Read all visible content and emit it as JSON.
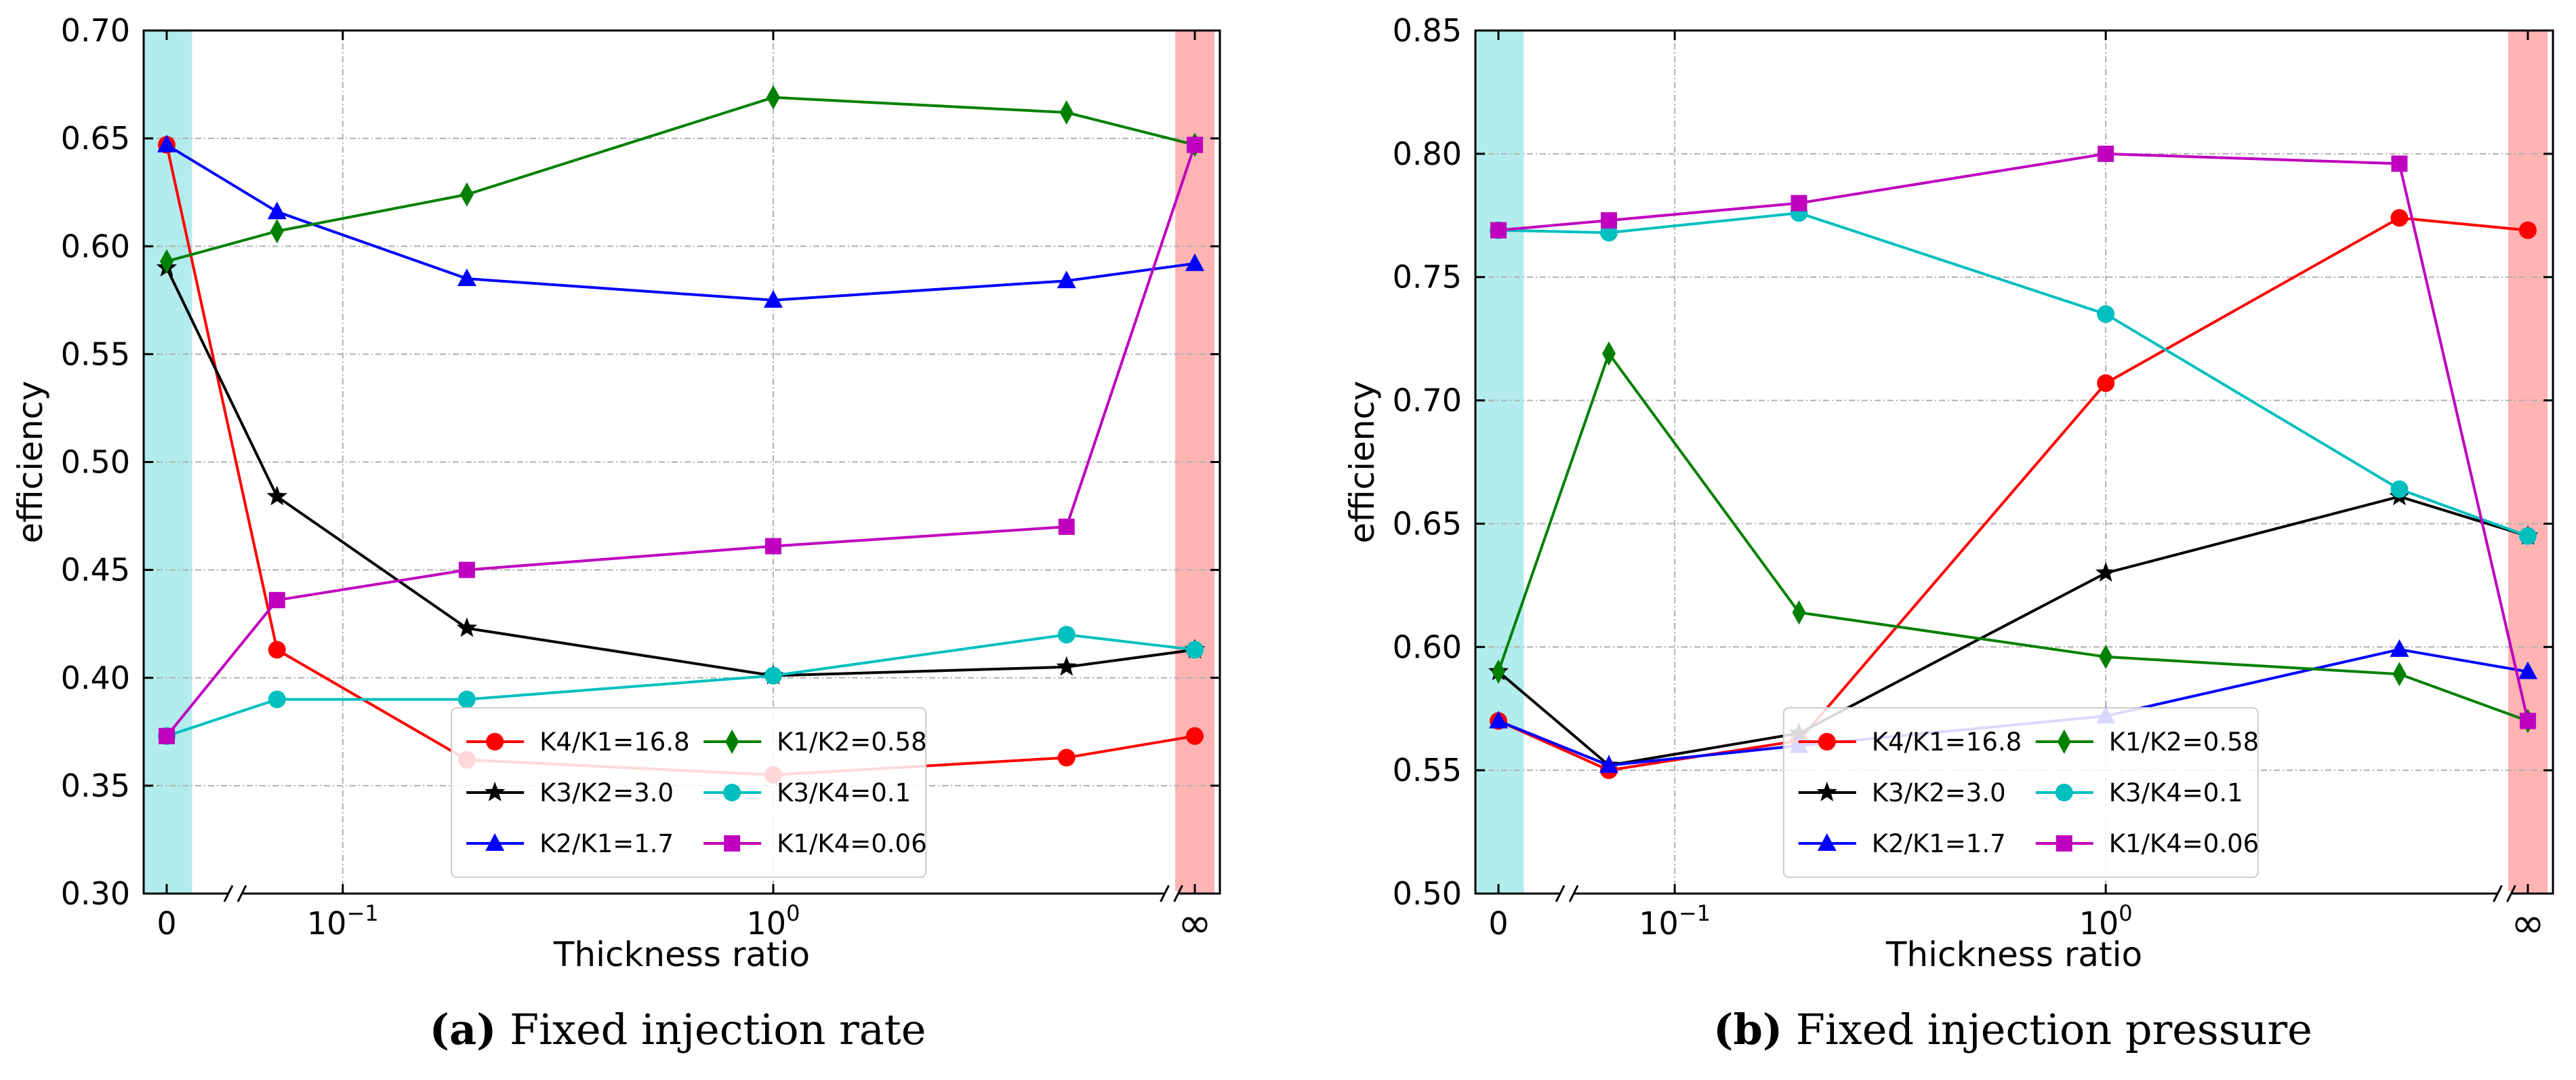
{
  "chart_data": [
    {
      "type": "line",
      "panel_label": "(a)",
      "caption": "Fixed injection rate",
      "xlabel": "Thickness ratio",
      "ylabel": "efficiency",
      "x_scale": "log with broken axis; special categories 0 and ∞",
      "x_ticks": [
        "0",
        "10^-1",
        "10^0",
        "∞"
      ],
      "x": [
        "0",
        0.06,
        0.2,
        1.0,
        5.0,
        "∞"
      ],
      "ylim": [
        0.3,
        0.7
      ],
      "y_ticks": [
        "0.30",
        "0.35",
        "0.40",
        "0.45",
        "0.50",
        "0.55",
        "0.60",
        "0.65",
        "0.70"
      ],
      "grid": true,
      "legend_position": "bottom-center",
      "legend_columns": 2,
      "shaded_regions": [
        {
          "at": "0",
          "color": "#b3ecec"
        },
        {
          "at": "∞",
          "color": "#ffb3b3"
        }
      ],
      "series": [
        {
          "name": "K4/K1=16.8",
          "color": "#ff0000",
          "marker": "circle",
          "values": [
            0.647,
            0.413,
            0.362,
            0.355,
            0.363,
            0.373
          ]
        },
        {
          "name": "K3/K2=3.0",
          "color": "#000000",
          "marker": "star",
          "values": [
            0.59,
            0.484,
            0.423,
            0.401,
            0.405,
            0.413
          ]
        },
        {
          "name": "K2/K1=1.7",
          "color": "#0000ff",
          "marker": "triangle",
          "values": [
            0.647,
            0.616,
            0.585,
            0.575,
            0.584,
            0.592
          ]
        },
        {
          "name": "K1/K2=0.58",
          "color": "#008000",
          "marker": "diamond",
          "values": [
            0.593,
            0.607,
            0.624,
            0.669,
            0.662,
            0.647
          ]
        },
        {
          "name": "K3/K4=0.1",
          "color": "#00bfbf",
          "marker": "circle",
          "values": [
            0.373,
            0.39,
            0.39,
            0.401,
            0.42,
            0.413
          ]
        },
        {
          "name": "K1/K4=0.06",
          "color": "#bf00bf",
          "marker": "square",
          "values": [
            0.373,
            0.436,
            0.45,
            0.461,
            0.47,
            0.647
          ]
        }
      ]
    },
    {
      "type": "line",
      "panel_label": "(b)",
      "caption": "Fixed injection pressure",
      "xlabel": "Thickness ratio",
      "ylabel": "efficiency",
      "x_scale": "log with broken axis; special categories 0 and ∞",
      "x_ticks": [
        "0",
        "10^-1",
        "10^0",
        "∞"
      ],
      "x": [
        "0",
        0.06,
        0.2,
        1.0,
        5.0,
        "∞"
      ],
      "ylim": [
        0.5,
        0.85
      ],
      "y_ticks": [
        "0.50",
        "0.55",
        "0.60",
        "0.65",
        "0.70",
        "0.75",
        "0.80",
        "0.85"
      ],
      "grid": true,
      "legend_position": "bottom-center",
      "legend_columns": 2,
      "shaded_regions": [
        {
          "at": "0",
          "color": "#b3ecec"
        },
        {
          "at": "∞",
          "color": "#ffb3b3"
        }
      ],
      "series": [
        {
          "name": "K4/K1=16.8",
          "color": "#ff0000",
          "marker": "circle",
          "values": [
            0.57,
            0.55,
            0.562,
            0.707,
            0.774,
            0.769
          ]
        },
        {
          "name": "K3/K2=3.0",
          "color": "#000000",
          "marker": "star",
          "values": [
            0.59,
            0.552,
            0.565,
            0.63,
            0.661,
            0.645
          ]
        },
        {
          "name": "K2/K1=1.7",
          "color": "#0000ff",
          "marker": "triangle",
          "values": [
            0.57,
            0.552,
            0.56,
            0.572,
            0.599,
            0.59
          ]
        },
        {
          "name": "K1/K2=0.58",
          "color": "#008000",
          "marker": "diamond",
          "values": [
            0.59,
            0.719,
            0.614,
            0.596,
            0.589,
            0.57
          ]
        },
        {
          "name": "K3/K4=0.1",
          "color": "#00bfbf",
          "marker": "circle",
          "values": [
            0.769,
            0.768,
            0.776,
            0.735,
            0.664,
            0.645
          ]
        },
        {
          "name": "K1/K4=0.06",
          "color": "#bf00bf",
          "marker": "square",
          "values": [
            0.769,
            0.773,
            0.78,
            0.8,
            0.796,
            0.57
          ]
        }
      ]
    }
  ]
}
